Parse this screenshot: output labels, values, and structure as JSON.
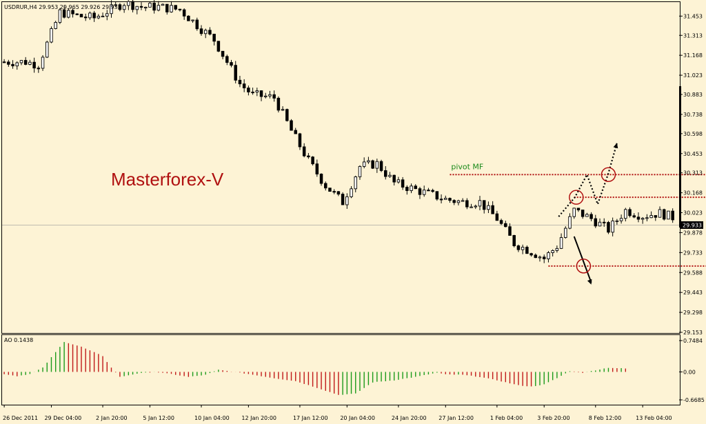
{
  "chart_header": {
    "symbol_line": "USDRUR,H4  29.953 29.965 29.926 29.933"
  },
  "watermark": {
    "text": "Masterforex-V",
    "color": "#b01010"
  },
  "pivot_label": {
    "text": "pivot MF",
    "color": "#1a8a1a"
  },
  "price_badge": "29.933",
  "ao_header": "AO 0.1438",
  "colors": {
    "background": "#fdf3d5",
    "candles": "#000000",
    "levels": "#b01010",
    "ao_up": "#1a9a1a",
    "ao_down": "#c01818"
  },
  "chart_data": [
    {
      "type": "candlestick",
      "title": "USDRUR,H4",
      "ylim": [
        29.153,
        31.55
      ],
      "y_ticks": [
        "31.453",
        "31.313",
        "31.168",
        "31.023",
        "30.883",
        "30.738",
        "30.598",
        "30.453",
        "30.313",
        "30.168",
        "30.023",
        "29.878",
        "29.733",
        "29.588",
        "29.443",
        "29.298",
        "29.153"
      ],
      "x_ticks": [
        "26 Dec 2011",
        "29 Dec 04:00",
        "2 Jan 20:00",
        "5 Jan 12:00",
        "10 Jan 04:00",
        "12 Jan 20:00",
        "17 Jan 12:00",
        "20 Jan 04:00",
        "24 Jan 20:00",
        "27 Jan 12:00",
        "1 Feb 04:00",
        "3 Feb 20:00",
        "8 Feb 12:00",
        "13 Feb 04:00"
      ],
      "current_price": 29.933,
      "close_path": [
        [
          0,
          31.12
        ],
        [
          5,
          31.12
        ],
        [
          8,
          31.1
        ],
        [
          13,
          31.48
        ],
        [
          18,
          31.45
        ],
        [
          21,
          31.44
        ],
        [
          28,
          31.55
        ],
        [
          32,
          31.52
        ],
        [
          36,
          31.52
        ],
        [
          41,
          31.5
        ],
        [
          46,
          31.36
        ],
        [
          49,
          31.28
        ],
        [
          55,
          30.96
        ],
        [
          58,
          30.88
        ],
        [
          63,
          30.86
        ],
        [
          67,
          30.62
        ],
        [
          71,
          30.4
        ],
        [
          75,
          30.22
        ],
        [
          79,
          30.1
        ],
        [
          83,
          30.36
        ],
        [
          87,
          30.38
        ],
        [
          91,
          30.24
        ],
        [
          95,
          30.2
        ],
        [
          99,
          30.16
        ],
        [
          103,
          30.12
        ],
        [
          107,
          30.1
        ],
        [
          111,
          30.1
        ],
        [
          115,
          29.98
        ],
        [
          119,
          29.8
        ],
        [
          123,
          29.74
        ],
        [
          126,
          29.69
        ],
        [
          129,
          29.78
        ],
        [
          133,
          30.04
        ],
        [
          137,
          29.98
        ],
        [
          141,
          29.9
        ],
        [
          145,
          30.04
        ],
        [
          149,
          30.0
        ],
        [
          153,
          30.02
        ],
        [
          156,
          29.99
        ]
      ],
      "levels": [
        {
          "name": "pivot MF",
          "value": 30.3,
          "x_range": [
            104,
            164
          ]
        },
        {
          "value": 30.135,
          "x_range": [
            133,
            165
          ]
        },
        {
          "value": 29.635,
          "x_range": [
            127,
            165
          ]
        }
      ]
    },
    {
      "type": "bar",
      "title": "AO",
      "current_value": 0.1438,
      "ylim": [
        -0.6685,
        0.7484
      ],
      "y_ticks": [
        "0.7484",
        "0.00",
        "-0.6685"
      ],
      "profile": [
        [
          0,
          -0.05
        ],
        [
          3,
          -0.1
        ],
        [
          6,
          -0.05
        ],
        [
          9,
          0.1
        ],
        [
          14,
          0.72
        ],
        [
          18,
          0.6
        ],
        [
          23,
          0.38
        ],
        [
          25,
          0.1
        ],
        [
          27,
          -0.12
        ],
        [
          31,
          -0.04
        ],
        [
          35,
          0.0
        ],
        [
          39,
          -0.05
        ],
        [
          43,
          -0.12
        ],
        [
          47,
          -0.07
        ],
        [
          50,
          0.05
        ],
        [
          53,
          0.01
        ],
        [
          57,
          -0.05
        ],
        [
          63,
          -0.15
        ],
        [
          68,
          -0.22
        ],
        [
          73,
          -0.38
        ],
        [
          78,
          -0.55
        ],
        [
          82,
          -0.52
        ],
        [
          86,
          -0.25
        ],
        [
          91,
          -0.2
        ],
        [
          96,
          -0.12
        ],
        [
          101,
          -0.02
        ],
        [
          103,
          -0.06
        ],
        [
          107,
          -0.07
        ],
        [
          111,
          -0.12
        ],
        [
          115,
          -0.2
        ],
        [
          120,
          -0.32
        ],
        [
          123,
          -0.35
        ],
        [
          126,
          -0.3
        ],
        [
          129,
          -0.15
        ],
        [
          132,
          0.02
        ],
        [
          135,
          -0.02
        ],
        [
          137,
          0.02
        ],
        [
          141,
          0.1
        ],
        [
          145,
          0.08
        ]
      ]
    }
  ]
}
